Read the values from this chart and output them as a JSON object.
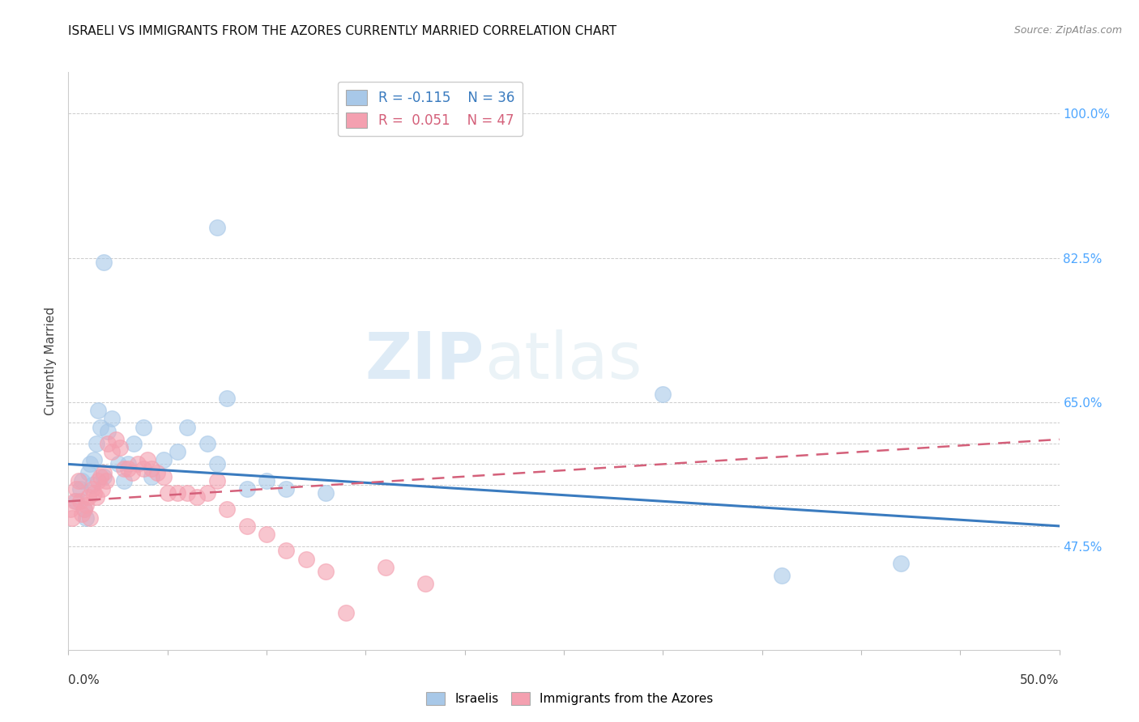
{
  "title": "ISRAELI VS IMMIGRANTS FROM THE AZORES CURRENTLY MARRIED CORRELATION CHART",
  "source": "Source: ZipAtlas.com",
  "ylabel": "Currently Married",
  "watermark": "ZIPatlas",
  "blue_color": "#a8c8e8",
  "pink_color": "#f4a0b0",
  "blue_line_color": "#3a7bbf",
  "pink_line_color": "#d4607a",
  "israelis_x": [
    0.004,
    0.006,
    0.007,
    0.008,
    0.009,
    0.01,
    0.011,
    0.012,
    0.013,
    0.014,
    0.015,
    0.016,
    0.018,
    0.02,
    0.022,
    0.025,
    0.028,
    0.03,
    0.033,
    0.038,
    0.042,
    0.048,
    0.055,
    0.06,
    0.07,
    0.075,
    0.08,
    0.09,
    0.1,
    0.11,
    0.13,
    0.3,
    0.36,
    0.42,
    0.075,
    0.018
  ],
  "israelis_y": [
    0.53,
    0.545,
    0.555,
    0.52,
    0.51,
    0.565,
    0.575,
    0.55,
    0.58,
    0.6,
    0.64,
    0.62,
    0.56,
    0.615,
    0.63,
    0.575,
    0.555,
    0.575,
    0.6,
    0.62,
    0.56,
    0.58,
    0.59,
    0.62,
    0.6,
    0.575,
    0.655,
    0.545,
    0.555,
    0.545,
    0.54,
    0.66,
    0.44,
    0.455,
    0.862,
    0.82
  ],
  "azores_x": [
    0.001,
    0.002,
    0.003,
    0.004,
    0.005,
    0.006,
    0.007,
    0.008,
    0.009,
    0.01,
    0.011,
    0.012,
    0.013,
    0.014,
    0.015,
    0.016,
    0.017,
    0.018,
    0.019,
    0.02,
    0.022,
    0.024,
    0.026,
    0.028,
    0.03,
    0.032,
    0.035,
    0.038,
    0.04,
    0.042,
    0.045,
    0.048,
    0.05,
    0.055,
    0.06,
    0.065,
    0.07,
    0.075,
    0.08,
    0.09,
    0.1,
    0.11,
    0.12,
    0.13,
    0.14,
    0.16,
    0.18
  ],
  "azores_y": [
    0.52,
    0.51,
    0.53,
    0.545,
    0.555,
    0.53,
    0.515,
    0.52,
    0.525,
    0.535,
    0.51,
    0.545,
    0.54,
    0.535,
    0.555,
    0.56,
    0.545,
    0.565,
    0.555,
    0.6,
    0.59,
    0.605,
    0.595,
    0.57,
    0.57,
    0.565,
    0.575,
    0.57,
    0.58,
    0.57,
    0.565,
    0.56,
    0.54,
    0.54,
    0.54,
    0.535,
    0.54,
    0.555,
    0.52,
    0.5,
    0.49,
    0.47,
    0.46,
    0.445,
    0.395,
    0.45,
    0.43
  ],
  "xlim": [
    0.0,
    0.5
  ],
  "ylim": [
    0.35,
    1.05
  ],
  "blue_trend_x0": 0.0,
  "blue_trend_y0": 0.575,
  "blue_trend_x1": 0.5,
  "blue_trend_y1": 0.5,
  "pink_trend_x0": 0.0,
  "pink_trend_y0": 0.53,
  "pink_trend_x1": 0.5,
  "pink_trend_y1": 0.605,
  "y_right_ticks": [
    0.475,
    0.5,
    0.525,
    0.55,
    0.575,
    0.6,
    0.625,
    0.65,
    0.825,
    1.0
  ],
  "y_right_labels": [
    "47.5%",
    "",
    "",
    "",
    "",
    "",
    "",
    "65.0%",
    "82.5%",
    "100.0%"
  ],
  "grid_y": [
    0.475,
    0.5,
    0.525,
    0.55,
    0.575,
    0.6,
    0.625,
    0.65,
    0.825,
    1.0
  ]
}
